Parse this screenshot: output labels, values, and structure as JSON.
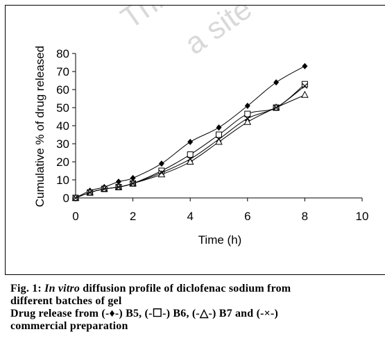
{
  "chart_data": {
    "type": "line",
    "xlabel": "Time (h)",
    "ylabel": "Cumulative % of drug released",
    "xlim": [
      0,
      10
    ],
    "ylim": [
      0,
      80
    ],
    "xticks": [
      0,
      2,
      4,
      6,
      8,
      10
    ],
    "yticks": [
      0,
      10,
      20,
      30,
      40,
      50,
      60,
      70,
      80
    ],
    "grid": false,
    "legend": "none",
    "series": [
      {
        "name": "B5",
        "marker": "diamond",
        "x": [
          0,
          0.5,
          1,
          1.5,
          2,
          3,
          4,
          5,
          6,
          7,
          8
        ],
        "y": [
          0,
          4,
          6,
          9,
          11,
          19,
          31,
          39,
          51,
          64,
          73
        ]
      },
      {
        "name": "B6",
        "marker": "square",
        "x": [
          0,
          0.5,
          1,
          1.5,
          2,
          3,
          4,
          5,
          6,
          7,
          8
        ],
        "y": [
          0,
          3,
          5,
          6,
          8,
          15,
          24,
          35,
          46.5,
          50,
          63
        ]
      },
      {
        "name": "B7",
        "marker": "triangle",
        "x": [
          0,
          0.5,
          1,
          1.5,
          2,
          3,
          4,
          5,
          6,
          7,
          8
        ],
        "y": [
          0,
          3,
          5,
          6,
          8,
          13,
          20,
          31,
          42,
          50,
          57
        ]
      },
      {
        "name": "commercial preparation",
        "marker": "cross",
        "x": [
          0,
          0.5,
          1,
          1.5,
          2,
          3,
          4,
          5,
          6,
          7,
          8
        ],
        "y": [
          0,
          3,
          5,
          6,
          8,
          14,
          21.5,
          32.5,
          44,
          50,
          62
        ]
      }
    ]
  },
  "watermark": {
    "text1": "This",
    "text2": "a site"
  },
  "caption": {
    "fig_label": "Fig. 1:",
    "title_italic": "In vitro",
    "title_rest": " diffusion profile of diclofenac sodium from",
    "title_line2": "different batches of gel",
    "legend_line1": "Drug release from (-♦-) B5, (-☐-) B6, (-△-) B7 and (-×-)",
    "legend_line2": "commercial preparation"
  }
}
